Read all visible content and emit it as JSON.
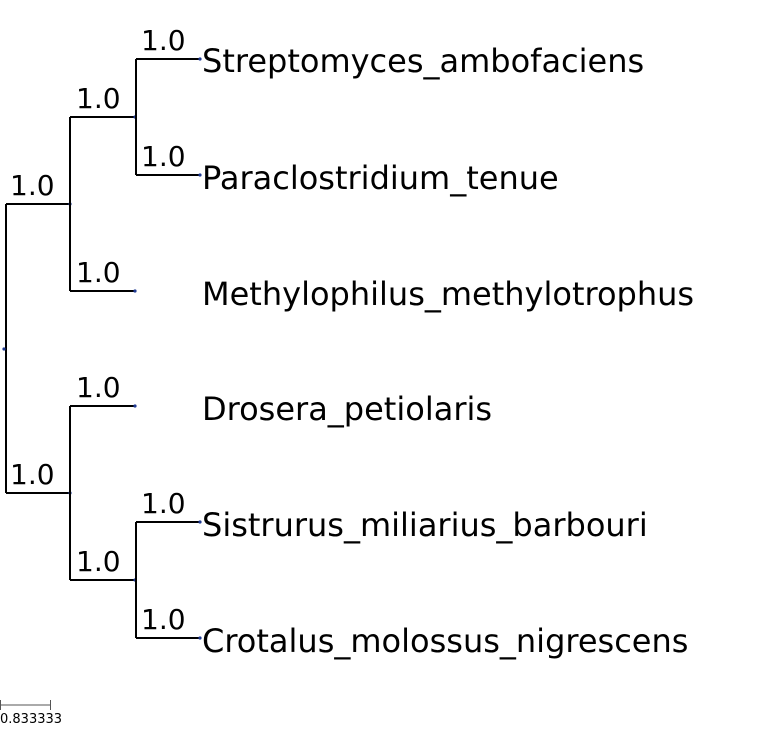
{
  "tree": {
    "leaves": [
      "Streptomyces_ambofaciens",
      "Paraclostridium_tenue",
      "Methylophilus_methylotrophus",
      "Drosera_petiolaris",
      "Sistrurus_miliarius_barbouri",
      "Crotalus_molossus_nigrescens"
    ],
    "support_values": [
      "1.0",
      "1.0",
      "1.0",
      "1.0",
      "1.0",
      "1.0",
      "1.0",
      "1.0",
      "1.0",
      "1.0"
    ],
    "colors": {
      "branch": "#000000",
      "node": "#1f3a93"
    }
  },
  "scale_bar": {
    "label": "0.833333"
  }
}
